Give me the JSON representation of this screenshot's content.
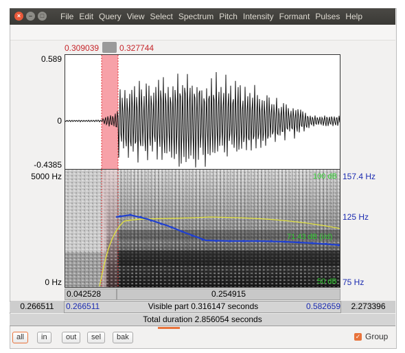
{
  "window": {
    "menu": [
      "File",
      "Edit",
      "Query",
      "View",
      "Select",
      "Spectrum",
      "Pitch",
      "Intensity",
      "Formant",
      "Pulses",
      "Help"
    ]
  },
  "selection": {
    "start": "0.309039",
    "end": "0.327744",
    "duration_left": "0.042528",
    "duration_selection": "0.254915"
  },
  "waveform": {
    "y_max": "0.589",
    "y_zero": "0",
    "y_min": "-0.4385"
  },
  "spectrogram": {
    "freq_top": "5000 Hz",
    "freq_bottom": "0 Hz",
    "pitch_top": "157.4 Hz",
    "pitch_cursor": "125 Hz",
    "pitch_bottom": "75 Hz",
    "intensity_top": "100 dB",
    "intensity_cursor": "71.43 dB (i/d)",
    "intensity_bottom": "50 dB"
  },
  "time_bar": {
    "window_start": "0.266511",
    "visible_start": "0.266511",
    "visible_text": "Visible part 0.316147 seconds",
    "visible_end": "0.582659",
    "window_end": "2.273396",
    "total_text": "Total duration 2.856054 seconds"
  },
  "buttons": {
    "all": "all",
    "in": "in",
    "out": "out",
    "sel": "sel",
    "bak": "bak",
    "group": "Group"
  },
  "colors": {
    "selection": "#f7a1a8",
    "pitch": "#1f3fd1",
    "intensity": "#e2e23a",
    "accent": "#e8733b"
  }
}
